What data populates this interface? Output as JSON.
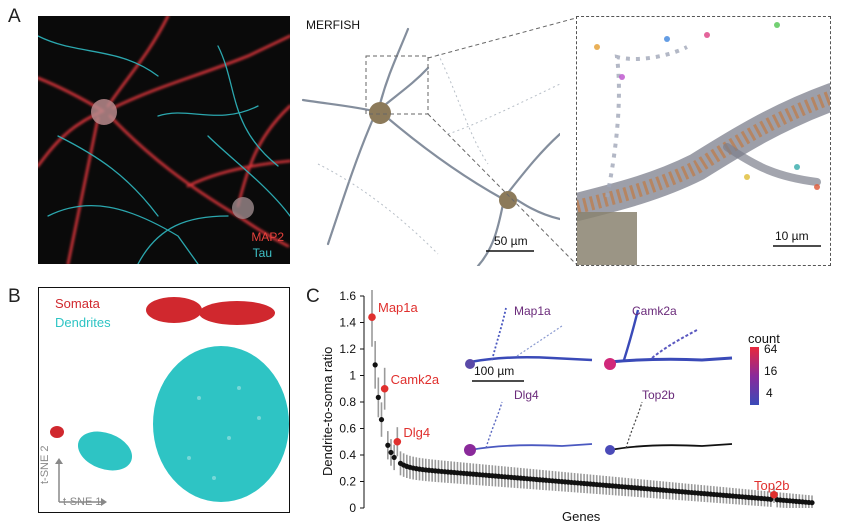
{
  "figure": {
    "panels": {
      "a": {
        "label": "A"
      },
      "b": {
        "label": "B"
      },
      "c": {
        "label": "C"
      }
    },
    "panel_a": {
      "stain_labels": [
        "MAP2",
        "Tau"
      ],
      "stain_colors": [
        "#e8423c",
        "#3fc3c8"
      ],
      "merfish_title": "MERFISH",
      "scalebar_main": "50 µm",
      "scalebar_zoom": "10 µm"
    },
    "panel_b": {
      "legend": [
        {
          "label": "Somata",
          "color": "#d0282e"
        },
        {
          "label": "Dendrites",
          "color": "#2ec4c4"
        }
      ],
      "axis_x": "t-SNE 1",
      "axis_y": "t-SNE 2"
    },
    "panel_c": {
      "insets": {
        "titles": [
          "Map1a",
          "Camk2a",
          "Dlg4",
          "Top2b"
        ],
        "scalebar": "100 µm",
        "colorbar_title": "count",
        "colorbar_ticks": [
          "64",
          "16",
          "4"
        ],
        "colorbar_colors": [
          "#e8283c",
          "#8a2a9a",
          "#3a4ab8"
        ]
      }
    }
  },
  "chart_data": {
    "type": "scatter",
    "title": "",
    "xlabel": "Genes",
    "ylabel": "Dendrite-to-soma ratio",
    "ylim": [
      0,
      1.6
    ],
    "yticks": [
      "0",
      "0.2",
      "0.4",
      "0.6",
      "0.8",
      "1",
      "1.2",
      "1.4",
      "1.6"
    ],
    "n_genes": 140,
    "highlighted": [
      {
        "gene": "Map1a",
        "rank": 0,
        "value": 1.44
      },
      {
        "gene": "Camk2a",
        "rank": 4,
        "value": 0.9
      },
      {
        "gene": "Dlg4",
        "rank": 8,
        "value": 0.5
      },
      {
        "gene": "Top2b",
        "rank": 127,
        "value": 0.1
      }
    ],
    "point_color": "#111111",
    "highlight_color": "#e0302e",
    "errorbar_color": "#9a9a9a"
  }
}
